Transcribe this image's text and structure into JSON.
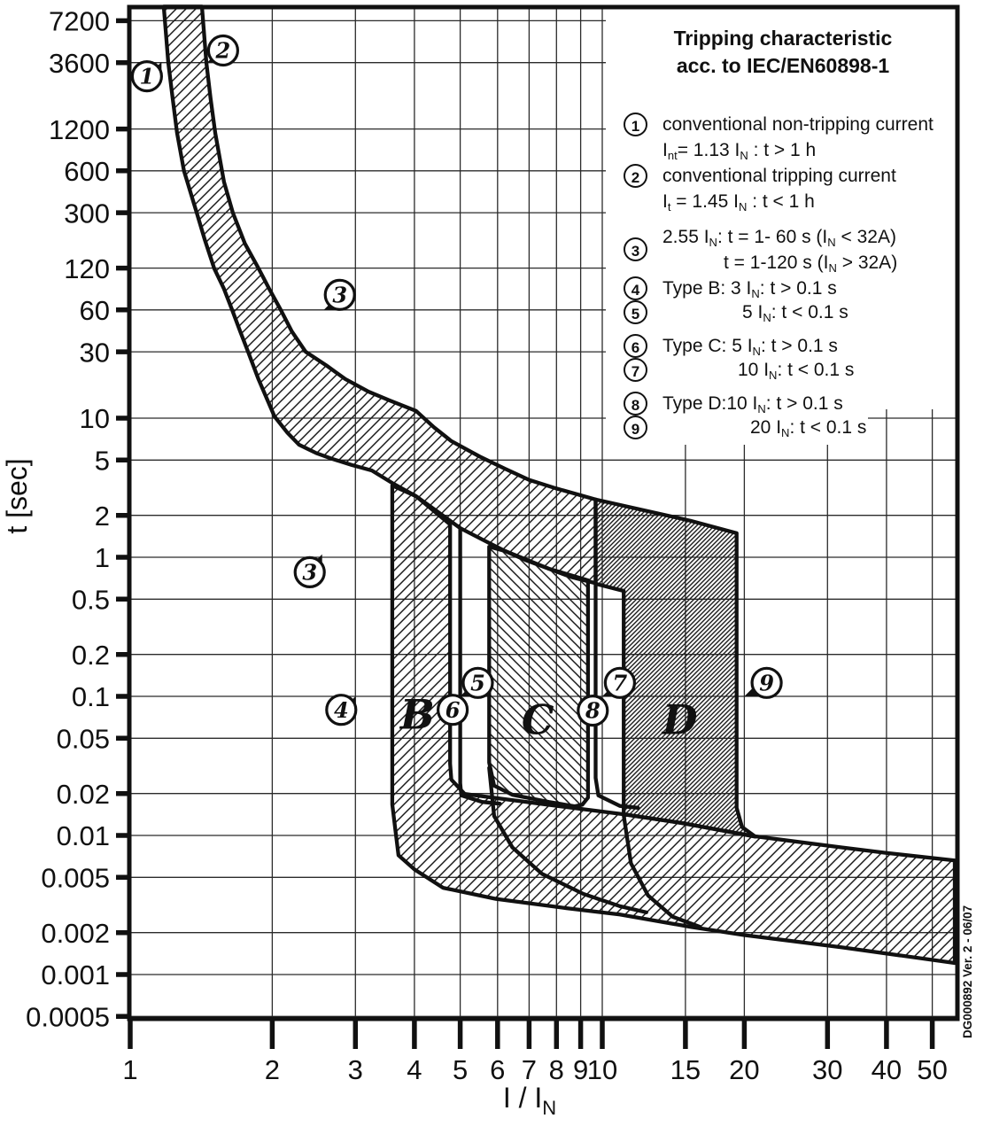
{
  "doc_code": "DG000892 Ver. 2 - 06/07",
  "legend": {
    "title_line1": "Tripping characteristic",
    "title_line2": "acc. to IEC/EN60898-1",
    "items": [
      {
        "num": "1",
        "line1": "conventional non-tripping current",
        "line2": "I[nt]= 1.13 I[N] : t > 1 h"
      },
      {
        "num": "2",
        "line1": "conventional tripping current",
        "line2": "I[t] = 1.45 I[N] : t < 1 h"
      },
      {
        "num": "3",
        "line1": "2.55 I[N]: t = 1- 60 s (I[N] < 32A)",
        "line2": "t = 1-120 s (I[N] > 32A)"
      },
      {
        "num": "4",
        "line1": "Type B: 3 I[N]: t > 0.1 s"
      },
      {
        "num": "5",
        "line1": "5 I[N]: t < 0.1 s"
      },
      {
        "num": "6",
        "line1": "Type C: 5 I[N]: t > 0.1 s"
      },
      {
        "num": "7",
        "line1": "10 I[N]: t < 0.1 s"
      },
      {
        "num": "8",
        "line1": "Type D:10 I[N]: t > 0.1 s"
      },
      {
        "num": "9",
        "line1": "20 I[N]: t < 0.1 s"
      }
    ]
  },
  "chart_data": {
    "type": "area",
    "title": "Tripping characteristic acc. to IEC/EN60898-1",
    "xlabel": "I / I[N]",
    "ylabel": "t [sec]",
    "x_log": true,
    "y_log": true,
    "grid": true,
    "x_ticks": [
      1,
      2,
      3,
      4,
      5,
      6,
      7,
      8,
      9,
      10,
      15,
      20,
      30,
      40,
      50
    ],
    "y_ticks": [
      7200,
      3600,
      1200,
      600,
      300,
      120,
      60,
      30,
      10,
      5,
      2,
      1,
      0.5,
      0.2,
      0.1,
      0.05,
      0.02,
      0.01,
      0.005,
      0.002,
      0.001,
      0.0005
    ],
    "x_range": [
      1,
      56.5
    ],
    "y_range": [
      0.00047,
      10500
    ],
    "band_labels": [
      {
        "text": "B",
        "I": 4.06,
        "t": 0.074
      },
      {
        "text": "C",
        "I": 7.3,
        "t": 0.068
      },
      {
        "text": "D",
        "I": 14.6,
        "t": 0.068
      }
    ],
    "curves": {
      "upper_thermal": [
        [
          1.419,
          9100
        ],
        [
          1.45,
          3600
        ],
        [
          1.48,
          2000
        ],
        [
          1.514,
          1125
        ],
        [
          1.58,
          500
        ],
        [
          1.65,
          300
        ],
        [
          1.75,
          180
        ],
        [
          1.871,
          119
        ],
        [
          1.97,
          85
        ],
        [
          2.084,
          60
        ],
        [
          2.2,
          42
        ],
        [
          2.353,
          30
        ],
        [
          2.6,
          24
        ],
        [
          2.856,
          19.1
        ],
        [
          3.2,
          15.5
        ],
        [
          3.545,
          13.4
        ],
        [
          4.03,
          11.3
        ],
        [
          4.4,
          8.6
        ],
        [
          4.79,
          6.84
        ],
        [
          5.5,
          5.3
        ],
        [
          6.22,
          4.33
        ],
        [
          7.0,
          3.6
        ],
        [
          7.95,
          3.14
        ],
        [
          8.8,
          2.85
        ],
        [
          9.68,
          2.6
        ],
        [
          11,
          2.35
        ],
        [
          13,
          2.05
        ],
        [
          15.38,
          1.83
        ],
        [
          17,
          1.65
        ],
        [
          19.26,
          1.49
        ]
      ],
      "lower_thermal": [
        [
          1.178,
          9100
        ],
        [
          1.204,
          3600
        ],
        [
          1.23,
          2000
        ],
        [
          1.257,
          1125
        ],
        [
          1.3,
          600
        ],
        [
          1.383,
          300
        ],
        [
          1.44,
          190
        ],
        [
          1.507,
          119
        ],
        [
          1.58,
          85
        ],
        [
          1.644,
          60
        ],
        [
          1.71,
          42
        ],
        [
          1.777,
          30
        ],
        [
          1.87,
          19
        ],
        [
          2.021,
          10.3
        ],
        [
          2.15,
          7.9
        ],
        [
          2.28,
          6.43
        ],
        [
          2.48,
          5.6
        ],
        [
          2.68,
          5.09
        ],
        [
          2.95,
          4.6
        ],
        [
          3.25,
          4.2
        ],
        [
          3.6,
          3.4
        ],
        [
          4.03,
          2.75
        ],
        [
          4.5,
          2.1
        ],
        [
          5.0,
          1.62
        ],
        [
          5.6,
          1.33
        ],
        [
          6.22,
          1.11
        ],
        [
          6.9,
          0.95
        ],
        [
          7.71,
          0.827
        ],
        [
          8.6,
          0.72
        ],
        [
          9.64,
          0.654
        ],
        [
          11.1,
          0.582
        ]
      ],
      "five_in_line": [
        [
          5.0,
          1.6
        ],
        [
          5.0,
          0.0238
        ],
        [
          5.03,
          0.0194
        ],
        [
          5.57,
          0.0174
        ],
        [
          6.07,
          0.0169
        ]
      ],
      "ten_in_line": [
        [
          9.68,
          0.642
        ],
        [
          9.68,
          0.0259
        ],
        [
          9.81,
          0.0194
        ],
        [
          10.9,
          0.0163
        ],
        [
          11.9,
          0.0158
        ]
      ],
      "c_lower_tail": [
        [
          5.76,
          0.0306
        ],
        [
          5.9,
          0.0138
        ],
        [
          6.45,
          0.0082
        ],
        [
          7.45,
          0.0053
        ],
        [
          9.12,
          0.0038
        ],
        [
          10.9,
          0.0031
        ],
        [
          12.4,
          0.0028
        ]
      ],
      "d_lower_tail": [
        [
          11.1,
          0.014
        ],
        [
          11.5,
          0.0063
        ],
        [
          12.5,
          0.0037
        ],
        [
          14.1,
          0.0026
        ],
        [
          16.1,
          0.0022
        ]
      ]
    },
    "regions": {
      "thermal_band": [
        [
          1.178,
          9100
        ],
        [
          1.204,
          3600
        ],
        [
          1.23,
          2000
        ],
        [
          1.257,
          1125
        ],
        [
          1.3,
          600
        ],
        [
          1.383,
          300
        ],
        [
          1.44,
          190
        ],
        [
          1.507,
          119
        ],
        [
          1.58,
          85
        ],
        [
          1.644,
          60
        ],
        [
          1.71,
          42
        ],
        [
          1.777,
          30
        ],
        [
          1.87,
          19
        ],
        [
          2.021,
          10.3
        ],
        [
          2.15,
          7.9
        ],
        [
          2.28,
          6.43
        ],
        [
          2.48,
          5.6
        ],
        [
          2.68,
          5.09
        ],
        [
          2.95,
          4.6
        ],
        [
          3.25,
          4.2
        ],
        [
          3.6,
          3.4
        ],
        [
          4.03,
          2.75
        ],
        [
          4.5,
          2.1
        ],
        [
          5.0,
          1.62
        ],
        [
          5.6,
          1.33
        ],
        [
          6.22,
          1.11
        ],
        [
          6.9,
          0.95
        ],
        [
          7.71,
          0.827
        ],
        [
          8.6,
          0.72
        ],
        [
          9.64,
          0.654
        ],
        [
          9.68,
          0.645
        ],
        [
          9.68,
          2.6
        ],
        [
          8.8,
          2.85
        ],
        [
          7.95,
          3.14
        ],
        [
          7.0,
          3.6
        ],
        [
          6.22,
          4.33
        ],
        [
          5.5,
          5.3
        ],
        [
          4.79,
          6.84
        ],
        [
          4.4,
          8.6
        ],
        [
          4.03,
          11.3
        ],
        [
          3.545,
          13.4
        ],
        [
          3.2,
          15.5
        ],
        [
          2.856,
          19.1
        ],
        [
          2.6,
          24
        ],
        [
          2.353,
          30
        ],
        [
          2.2,
          42
        ],
        [
          2.084,
          60
        ],
        [
          1.97,
          85
        ],
        [
          1.871,
          119
        ],
        [
          1.75,
          180
        ],
        [
          1.65,
          300
        ],
        [
          1.58,
          500
        ],
        [
          1.514,
          1125
        ],
        [
          1.48,
          2000
        ],
        [
          1.45,
          3600
        ],
        [
          1.419,
          9100
        ]
      ],
      "b_band_and_bottom": [
        [
          3.59,
          3.28
        ],
        [
          3.59,
          0.0167
        ],
        [
          3.7,
          0.0072
        ],
        [
          4.0,
          0.0057
        ],
        [
          4.6,
          0.0042
        ],
        [
          5.95,
          0.0035
        ],
        [
          8.4,
          0.003
        ],
        [
          10.9,
          0.0027
        ],
        [
          15.4,
          0.0022
        ],
        [
          20.0,
          0.00192
        ],
        [
          32.1,
          0.00157
        ],
        [
          55.8,
          0.00121
        ],
        [
          55.8,
          0.0066
        ],
        [
          39.8,
          0.0075
        ],
        [
          32.1,
          0.0082
        ],
        [
          20.9,
          0.0099
        ],
        [
          14.7,
          0.0123
        ],
        [
          11.1,
          0.0142
        ],
        [
          8.4,
          0.016
        ],
        [
          5.95,
          0.0186
        ],
        [
          5.11,
          0.0199
        ],
        [
          4.79,
          0.0252
        ],
        [
          4.76,
          0.0328
        ],
        [
          4.76,
          1.72
        ],
        [
          4.03,
          2.75
        ]
      ],
      "c_band": [
        [
          5.76,
          1.19
        ],
        [
          5.76,
          0.0334
        ],
        [
          5.9,
          0.0228
        ],
        [
          6.45,
          0.0196
        ],
        [
          7.71,
          0.0174
        ],
        [
          8.74,
          0.0162
        ],
        [
          9.07,
          0.0166
        ],
        [
          9.33,
          0.0187
        ],
        [
          9.33,
          0.683
        ],
        [
          7.71,
          0.827
        ],
        [
          6.22,
          1.11
        ]
      ],
      "d_band": [
        [
          9.68,
          2.6
        ],
        [
          15.38,
          1.83
        ],
        [
          19.26,
          1.49
        ],
        [
          19.26,
          0.0158
        ],
        [
          19.77,
          0.0115
        ],
        [
          21.1,
          0.0098
        ],
        [
          14.7,
          0.0123
        ],
        [
          11.1,
          0.0142
        ],
        [
          11.1,
          0.573
        ],
        [
          9.68,
          0.645
        ]
      ]
    },
    "markers": [
      {
        "num": "1",
        "cI": 1.085,
        "ct": 2870,
        "tI": 1.165,
        "tt": 3640,
        "dir": "sw"
      },
      {
        "num": "2",
        "cI": 1.573,
        "ct": 4400,
        "tI": 1.455,
        "tt": 3600,
        "dir": "ne"
      },
      {
        "num": "3",
        "cI": 2.78,
        "ct": 77,
        "tI": 2.57,
        "tt": 60,
        "dir": "ne"
      },
      {
        "num": "3",
        "cI": 2.4,
        "ct": 0.78,
        "tI": 2.55,
        "tt": 1.05,
        "dir": "sw"
      },
      {
        "num": "4",
        "cI": 2.8,
        "ct": 0.08,
        "tI": 3.0,
        "tt": 0.1,
        "dir": "sw"
      },
      {
        "num": "5",
        "cI": 5.45,
        "ct": 0.125,
        "tI": 5.0,
        "tt": 0.1,
        "dir": "ne"
      },
      {
        "num": "6",
        "cI": 4.82,
        "ct": 0.08,
        "tI": 5.03,
        "tt": 0.098,
        "dir": "sw"
      },
      {
        "num": "7",
        "cI": 10.9,
        "ct": 0.125,
        "tI": 10.0,
        "tt": 0.1,
        "dir": "ne"
      },
      {
        "num": "8",
        "cI": 9.55,
        "ct": 0.079,
        "tI": 10.05,
        "tt": 0.098,
        "dir": "sw"
      },
      {
        "num": "9",
        "cI": 22.3,
        "ct": 0.125,
        "tI": 20.0,
        "tt": 0.1,
        "dir": "ne"
      }
    ]
  }
}
